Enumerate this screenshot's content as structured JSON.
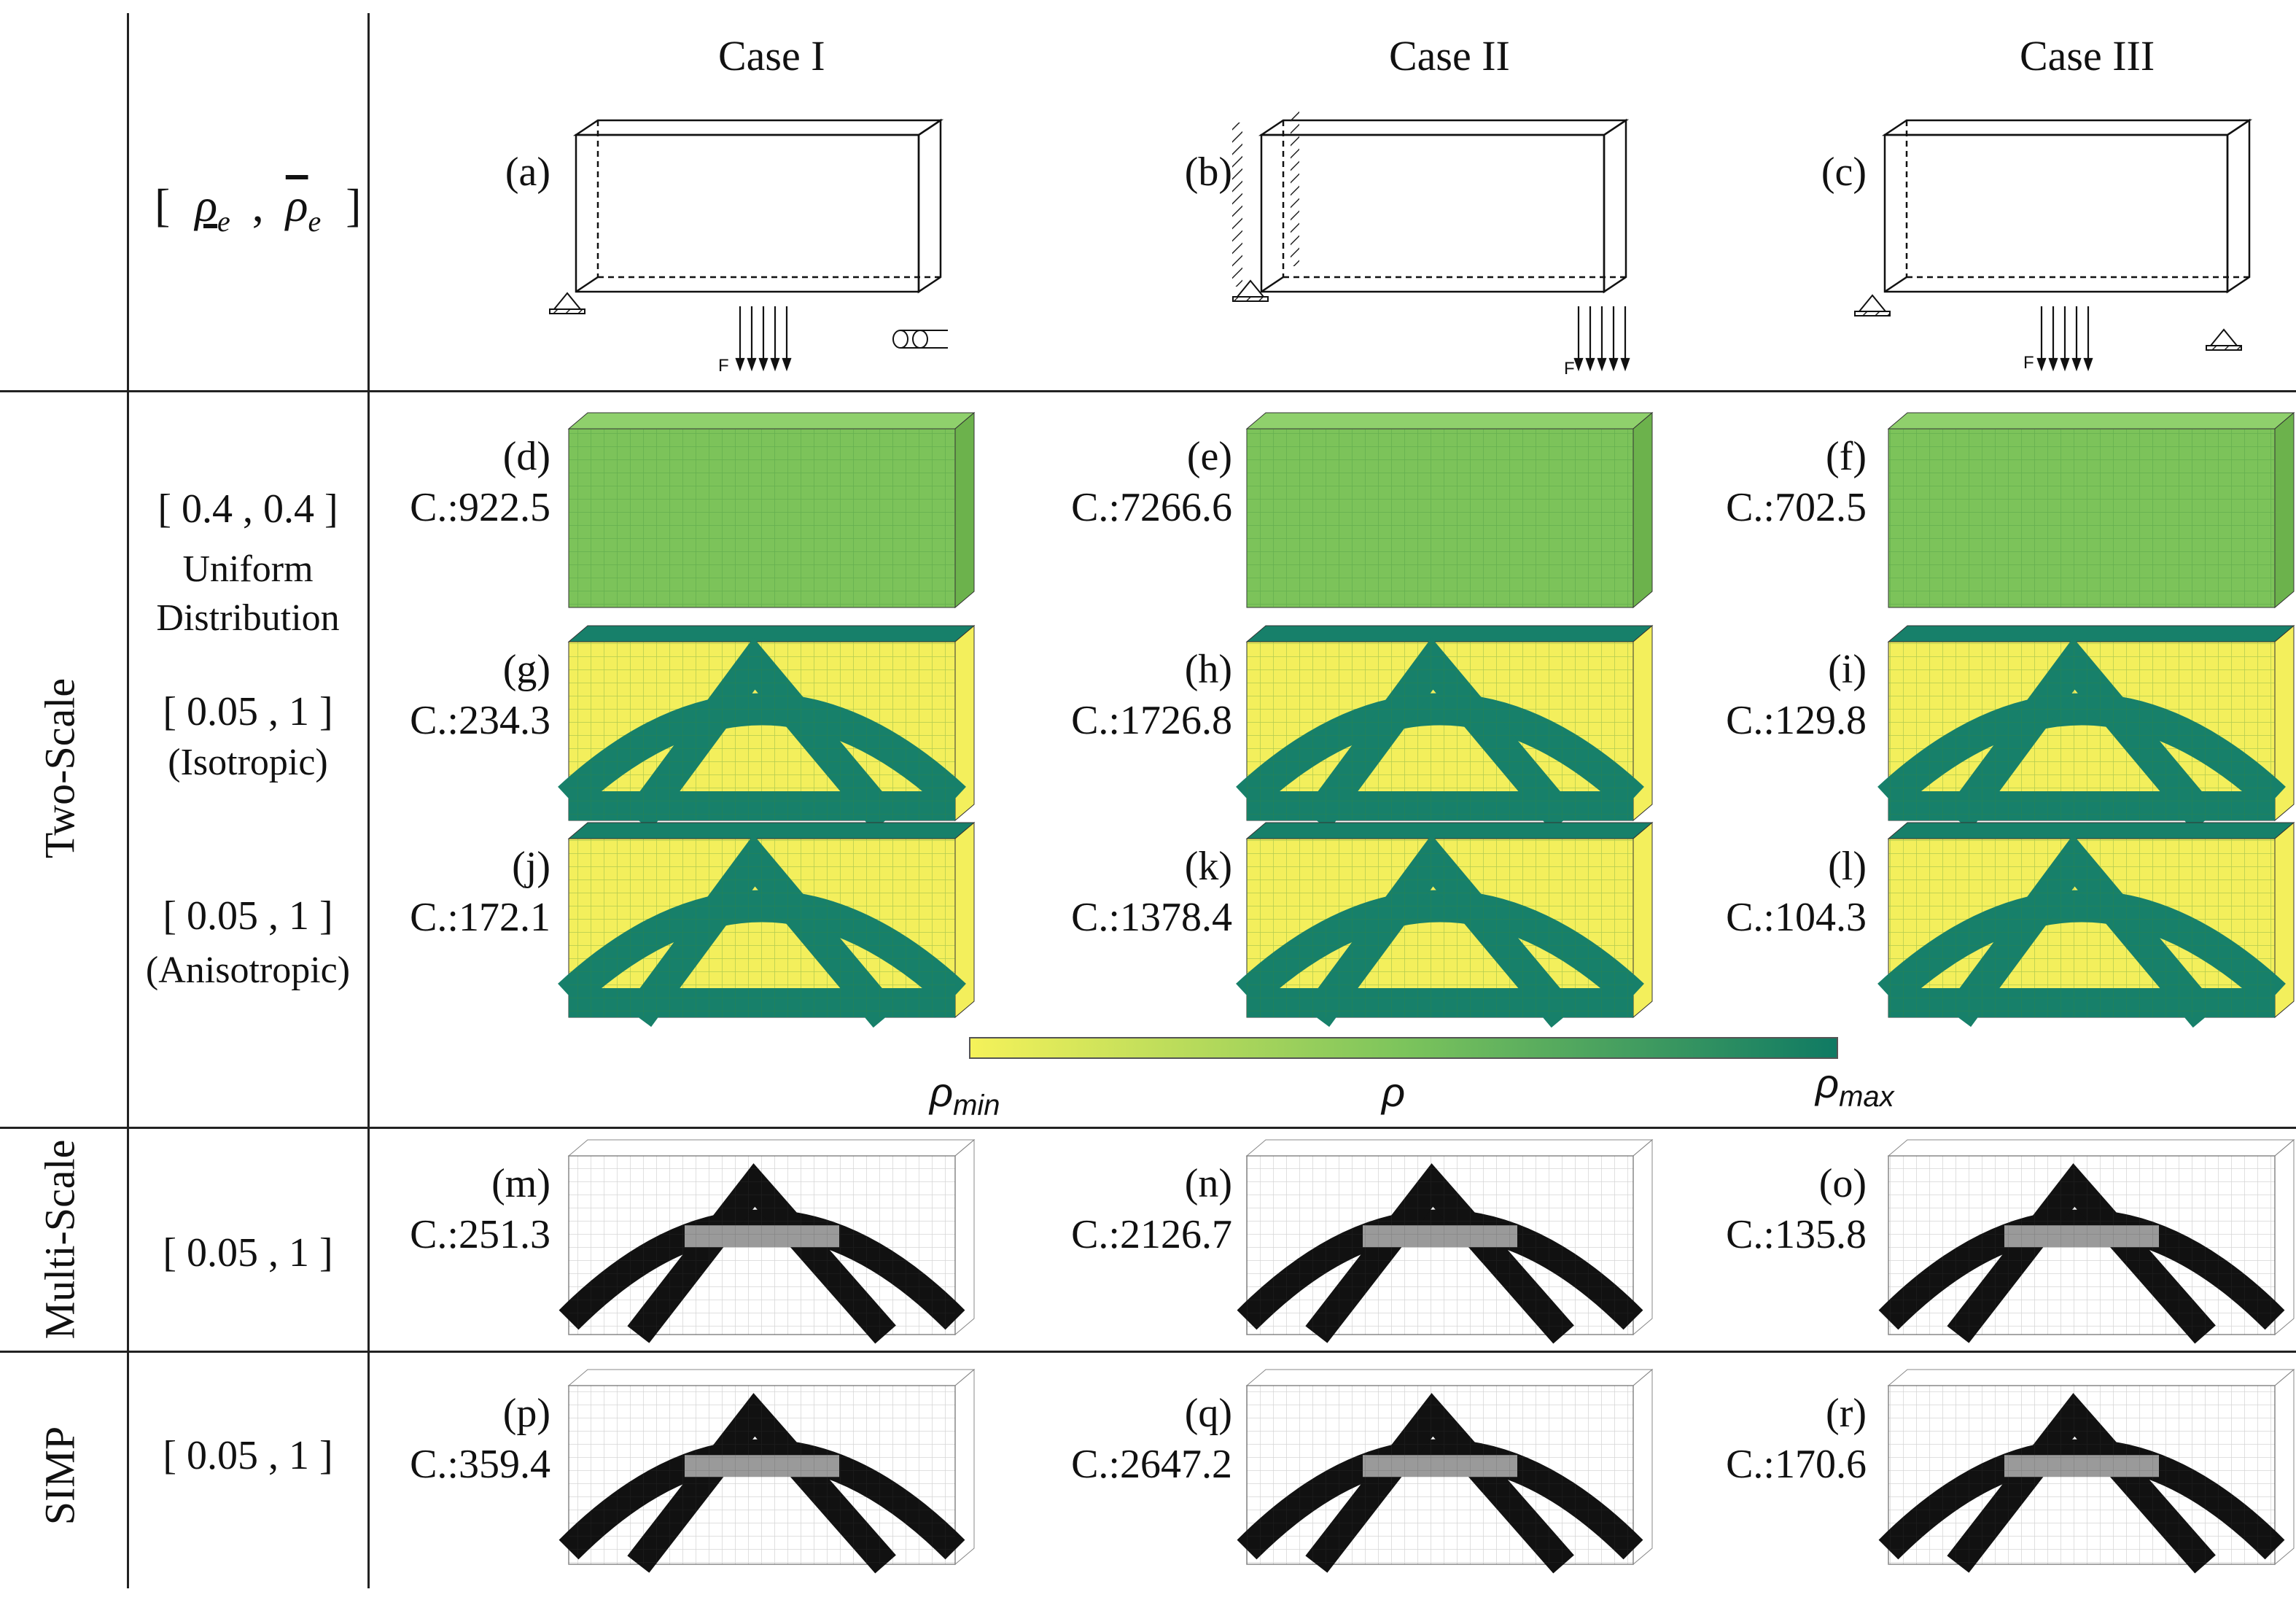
{
  "headers": {
    "col1": "Case I",
    "col2": "Case II",
    "col3": "Case III"
  },
  "bounds_header": {
    "open": "[",
    "lower": "ρ",
    "lower_sub": "e",
    "sep": ",",
    "upper": "ρ",
    "upper_sub": "e",
    "close": "]"
  },
  "row_groups": {
    "two_scale": "Two-Scale",
    "multi_scale": "Multi-Scale",
    "simp": "SIMP"
  },
  "row_labels": {
    "uniform_bounds": "[ 0.4 , 0.4 ]",
    "uniform_line1": "Uniform",
    "uniform_line2": "Distribution",
    "iso_bounds": "[ 0.05 , 1 ]",
    "iso_note": "(Isotropic)",
    "aniso_bounds": "[ 0.05 , 1 ]",
    "aniso_note": "(Anisotropic)",
    "multi_bounds": "[ 0.05 , 1 ]",
    "simp_bounds": "[ 0.05 , 1 ]"
  },
  "load_label": "F",
  "panels": [
    {
      "id": "a",
      "label": "(a)",
      "c": ""
    },
    {
      "id": "b",
      "label": "(b)",
      "c": ""
    },
    {
      "id": "c",
      "label": "(c)",
      "c": ""
    },
    {
      "id": "d",
      "label": "(d)",
      "c": "C.:922.5"
    },
    {
      "id": "e",
      "label": "(e)",
      "c": "C.:7266.6"
    },
    {
      "id": "f",
      "label": "(f)",
      "c": "C.:702.5"
    },
    {
      "id": "g",
      "label": "(g)",
      "c": "C.:234.3"
    },
    {
      "id": "h",
      "label": "(h)",
      "c": "C.:1726.8"
    },
    {
      "id": "i",
      "label": "(i)",
      "c": "C.:129.8"
    },
    {
      "id": "j",
      "label": "(j)",
      "c": "C.:172.1"
    },
    {
      "id": "k",
      "label": "(k)",
      "c": "C.:1378.4"
    },
    {
      "id": "l",
      "label": "(l)",
      "c": "C.:104.3"
    },
    {
      "id": "m",
      "label": "(m)",
      "c": "C.:251.3"
    },
    {
      "id": "n",
      "label": "(n)",
      "c": "C.:2126.7"
    },
    {
      "id": "o",
      "label": "(o)",
      "c": "C.:135.8"
    },
    {
      "id": "p",
      "label": "(p)",
      "c": "C.:359.4"
    },
    {
      "id": "q",
      "label": "(q)",
      "c": "C.:2647.2"
    },
    {
      "id": "r",
      "label": "(r)",
      "c": "C.:170.6"
    }
  ],
  "colorbar": {
    "min_label": "ρ",
    "min_sub": "min",
    "mid_label": "ρ",
    "max_label": "ρ",
    "max_sub": "max",
    "color_low": "#f5f25a",
    "color_mid": "#7cc45c",
    "color_high": "#0f7a63"
  },
  "colors": {
    "uniform_green": "#7cc35a",
    "dark_teal": "#17806a",
    "yellow": "#f3ef5c",
    "black": "#000000",
    "grey": "#9a9a9a"
  }
}
